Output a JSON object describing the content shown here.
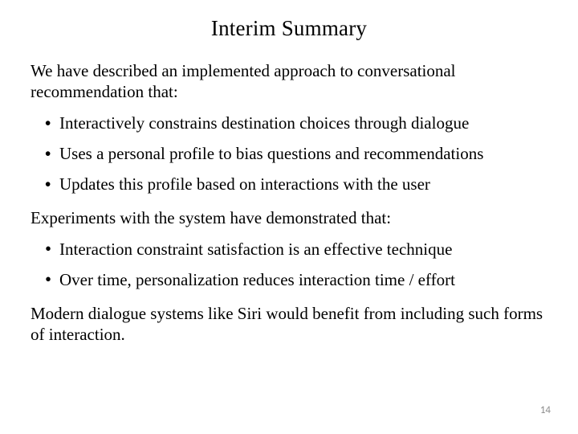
{
  "title": "Interim Summary",
  "intro1": "We have described an implemented approach to conversational recommendation that:",
  "list1": {
    "items": [
      "Interactively constrains destination choices through dialogue",
      "Uses a personal profile to bias questions and recommendations",
      "Updates this profile based on interactions with the user"
    ]
  },
  "intro2": "Experiments with the system have demonstrated that:",
  "list2": {
    "items": [
      "Interaction constraint satisfaction is an effective technique",
      "Over time, personalization reduces interaction time / effort"
    ]
  },
  "closing": "Modern dialogue systems like Siri would benefit from including such forms of interaction.",
  "page_number": "14",
  "style": {
    "background_color": "#ffffff",
    "text_color": "#000000",
    "page_num_color": "#8c8c8c",
    "title_fontsize": 27,
    "body_fontsize": 21,
    "pagenum_fontsize": 13,
    "font_family": "Times New Roman"
  }
}
